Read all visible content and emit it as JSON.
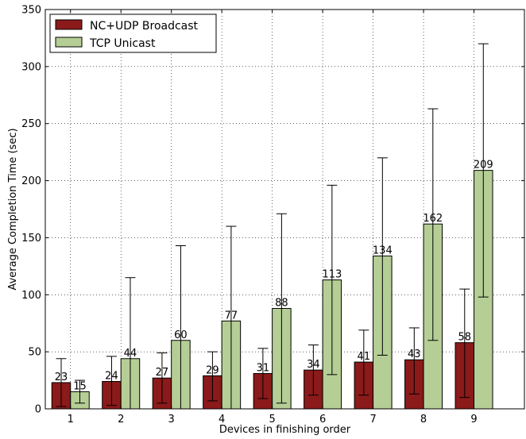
{
  "chart_data": {
    "type": "bar",
    "title": "",
    "xlabel": "Devices in finishing order",
    "ylabel": "Average Completion Time (sec)",
    "ylim": [
      0,
      350
    ],
    "yticks": [
      0,
      50,
      100,
      150,
      200,
      250,
      300,
      350
    ],
    "grid": true,
    "legend_position": "top-left",
    "categories": [
      "1",
      "2",
      "3",
      "4",
      "5",
      "6",
      "7",
      "8",
      "9"
    ],
    "series": [
      {
        "name": "NC+UDP Broadcast",
        "color": "#8b1a1a",
        "values": [
          23,
          24,
          27,
          29,
          31,
          34,
          41,
          43,
          58
        ],
        "value_labels": [
          "23",
          "24",
          "27",
          "29",
          "31",
          "34",
          "41",
          "43",
          "58"
        ],
        "error_low": [
          2,
          3,
          5,
          7,
          9,
          12,
          12,
          13,
          10
        ],
        "error_high": [
          44,
          46,
          49,
          50,
          53,
          56,
          69,
          71,
          105
        ]
      },
      {
        "name": "TCP Unicast",
        "color": "#b5ce95",
        "values": [
          15,
          44,
          60,
          77,
          88,
          113,
          134,
          162,
          209
        ],
        "value_labels": [
          "15",
          "44",
          "60",
          "77",
          "88",
          "113",
          "134",
          "162",
          "209"
        ],
        "error_low": [
          5,
          0,
          0,
          0,
          5,
          30,
          47,
          60,
          98
        ],
        "error_high": [
          25,
          115,
          143,
          160,
          171,
          196,
          220,
          263,
          320
        ]
      }
    ]
  }
}
